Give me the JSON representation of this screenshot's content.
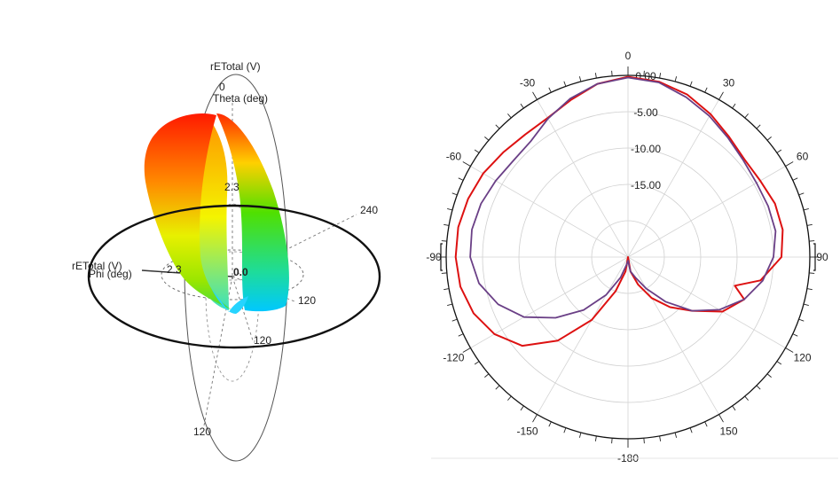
{
  "chart_data": [
    {
      "type": "3d-radiation-pattern",
      "labels": {
        "r_axis": "rETotal (V)",
        "theta_axis": "Theta (deg)",
        "phi_axis": "Phi (deg)",
        "r_axis_side": "rETotal (V)"
      },
      "ticks": {
        "zero_top": "0",
        "r_mid": "2.3",
        "r_left": "2.3",
        "origin": "0.0",
        "phi_240": "240",
        "phi_120": "120",
        "theta_120_right": "120",
        "theta_120_bottom": "120"
      },
      "colors": {
        "max": "#ff0000",
        "mid": "#ffff00",
        "low": "#00ff00",
        "min": "#00d8ff"
      }
    },
    {
      "type": "polar",
      "angle_labels": [
        {
          "deg": 0,
          "label": "0"
        },
        {
          "deg": 30,
          "label": "30"
        },
        {
          "deg": 60,
          "label": "60"
        },
        {
          "deg": 90,
          "label": "90"
        },
        {
          "deg": 120,
          "label": "120"
        },
        {
          "deg": 150,
          "label": "150"
        },
        {
          "deg": 180,
          "label": "-180"
        },
        {
          "deg": -150,
          "label": "-150"
        },
        {
          "deg": -120,
          "label": "-120"
        },
        {
          "deg": -90,
          "label": "-90"
        },
        {
          "deg": -60,
          "label": "-60"
        },
        {
          "deg": -30,
          "label": "-30"
        }
      ],
      "radial_range": [
        -25,
        0
      ],
      "radial_ticks": [
        {
          "value": 0,
          "label": "0.00"
        },
        {
          "value": -5,
          "label": "-5.00"
        },
        {
          "value": -10,
          "label": "-10.00"
        },
        {
          "value": -15,
          "label": "-15.00"
        }
      ],
      "series": [
        {
          "color": "#dd1111",
          "theta": [
            0,
            10,
            20,
            30,
            40,
            50,
            60,
            70,
            80,
            90,
            100,
            105,
            110,
            120,
            130,
            140,
            150,
            160,
            170,
            180,
            190,
            200,
            210,
            220,
            230,
            240,
            250,
            260,
            270,
            280,
            290,
            300,
            310,
            320,
            330,
            340,
            350
          ],
          "r": [
            -0.2,
            -0.5,
            -1.2,
            -2.3,
            -3.4,
            -4.1,
            -4.0,
            -3.5,
            -3.4,
            -3.9,
            -6.5,
            -9.8,
            -8.0,
            -10.0,
            -13.5,
            -16.0,
            -18.5,
            -21.0,
            -23.0,
            -25.0,
            -23.0,
            -20.0,
            -15.0,
            -10.0,
            -6.0,
            -3.8,
            -2.4,
            -1.6,
            -1.3,
            -1.3,
            -1.6,
            -2.0,
            -2.6,
            -3.0,
            -2.9,
            -2.0,
            -0.8
          ]
        },
        {
          "color": "#6a3f86",
          "theta": [
            0,
            10,
            20,
            30,
            40,
            50,
            60,
            70,
            80,
            90,
            100,
            110,
            120,
            130,
            140,
            150,
            160,
            170,
            180,
            190,
            200,
            210,
            220,
            230,
            240,
            250,
            260,
            270,
            280,
            290,
            300,
            310,
            320,
            330,
            340,
            350
          ],
          "r": [
            -0.3,
            -0.6,
            -1.6,
            -2.6,
            -3.6,
            -4.3,
            -4.6,
            -4.5,
            -4.4,
            -5.0,
            -6.2,
            -8.0,
            -10.5,
            -13.5,
            -17.0,
            -20.0,
            -22.0,
            -23.0,
            -24.5,
            -24.0,
            -22.0,
            -19.0,
            -15.5,
            -12.0,
            -8.5,
            -6.0,
            -4.2,
            -3.3,
            -3.2,
            -3.5,
            -4.0,
            -4.4,
            -4.2,
            -3.0,
            -1.8,
            -0.8
          ]
        }
      ]
    }
  ]
}
